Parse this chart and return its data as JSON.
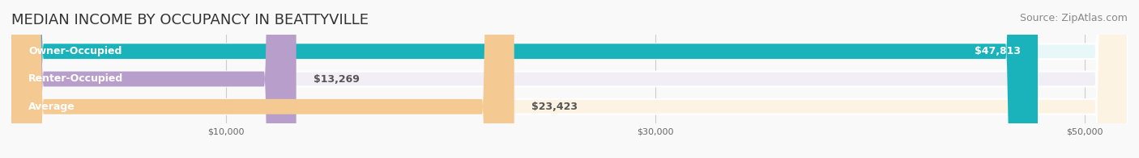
{
  "title": "MEDIAN INCOME BY OCCUPANCY IN BEATTYVILLE",
  "source": "Source: ZipAtlas.com",
  "categories": [
    "Owner-Occupied",
    "Renter-Occupied",
    "Average"
  ],
  "values": [
    47813,
    13269,
    23423
  ],
  "bar_colors": [
    "#1ab3bc",
    "#b89eca",
    "#f5c992"
  ],
  "bar_bg_colors": [
    "#e8f8f9",
    "#f2eef6",
    "#fdf3e3"
  ],
  "value_labels": [
    "$47,813",
    "$13,269",
    "$23,423"
  ],
  "xlim": [
    0,
    52000
  ],
  "xticks": [
    10000,
    30000,
    50000
  ],
  "xtick_labels": [
    "$10,000",
    "$30,000",
    "$50,000"
  ],
  "title_fontsize": 13,
  "source_fontsize": 9,
  "label_fontsize": 9,
  "value_fontsize": 9,
  "background_color": "#f9f9f9",
  "bar_height": 0.55
}
